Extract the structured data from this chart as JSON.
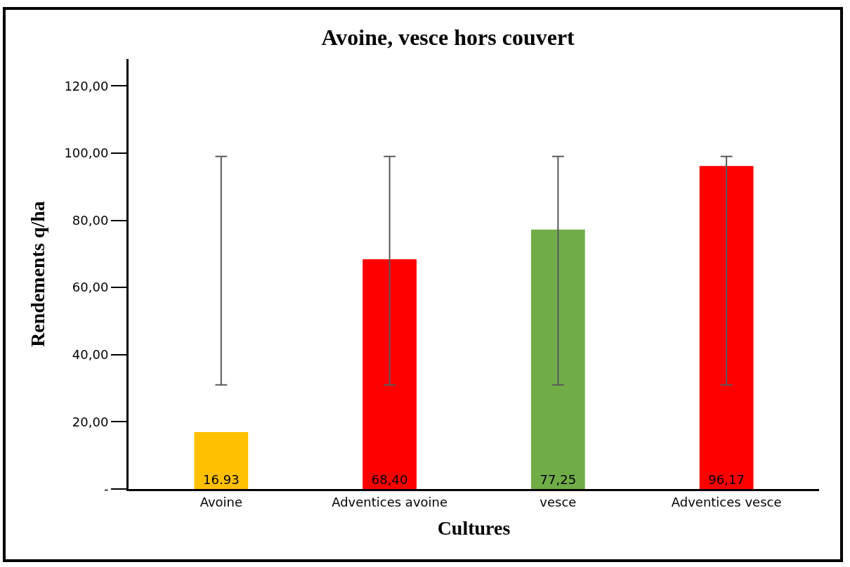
{
  "chart_data": {
    "type": "bar",
    "title": "Avoine, vesce hors couvert",
    "xlabel": "Cultures",
    "ylabel": "Rendements q/ha",
    "categories": [
      "Avoine",
      "Adventices avoine",
      "vesce",
      "Adventices vesce"
    ],
    "values": [
      16.93,
      68.4,
      77.25,
      96.17
    ],
    "colors": [
      "#ffc000",
      "#ff0000",
      "#70ad47",
      "#ff0000"
    ],
    "value_labels": [
      "16.93",
      "68,40",
      "77,25",
      "96,17"
    ],
    "errors": [
      [
        31,
        99
      ],
      [
        31,
        99
      ],
      [
        31,
        99
      ],
      [
        31,
        99
      ]
    ],
    "ylim": [
      0,
      128
    ],
    "yticks": [
      {
        "value": 0,
        "label": "-"
      },
      {
        "value": 20,
        "label": "20,00"
      },
      {
        "value": 40,
        "label": "40,00"
      },
      {
        "value": 60,
        "label": "60,00"
      },
      {
        "value": 80,
        "label": "80,00"
      },
      {
        "value": 100,
        "label": "100,00"
      },
      {
        "value": 120,
        "label": "120,00"
      }
    ],
    "grid": false
  }
}
